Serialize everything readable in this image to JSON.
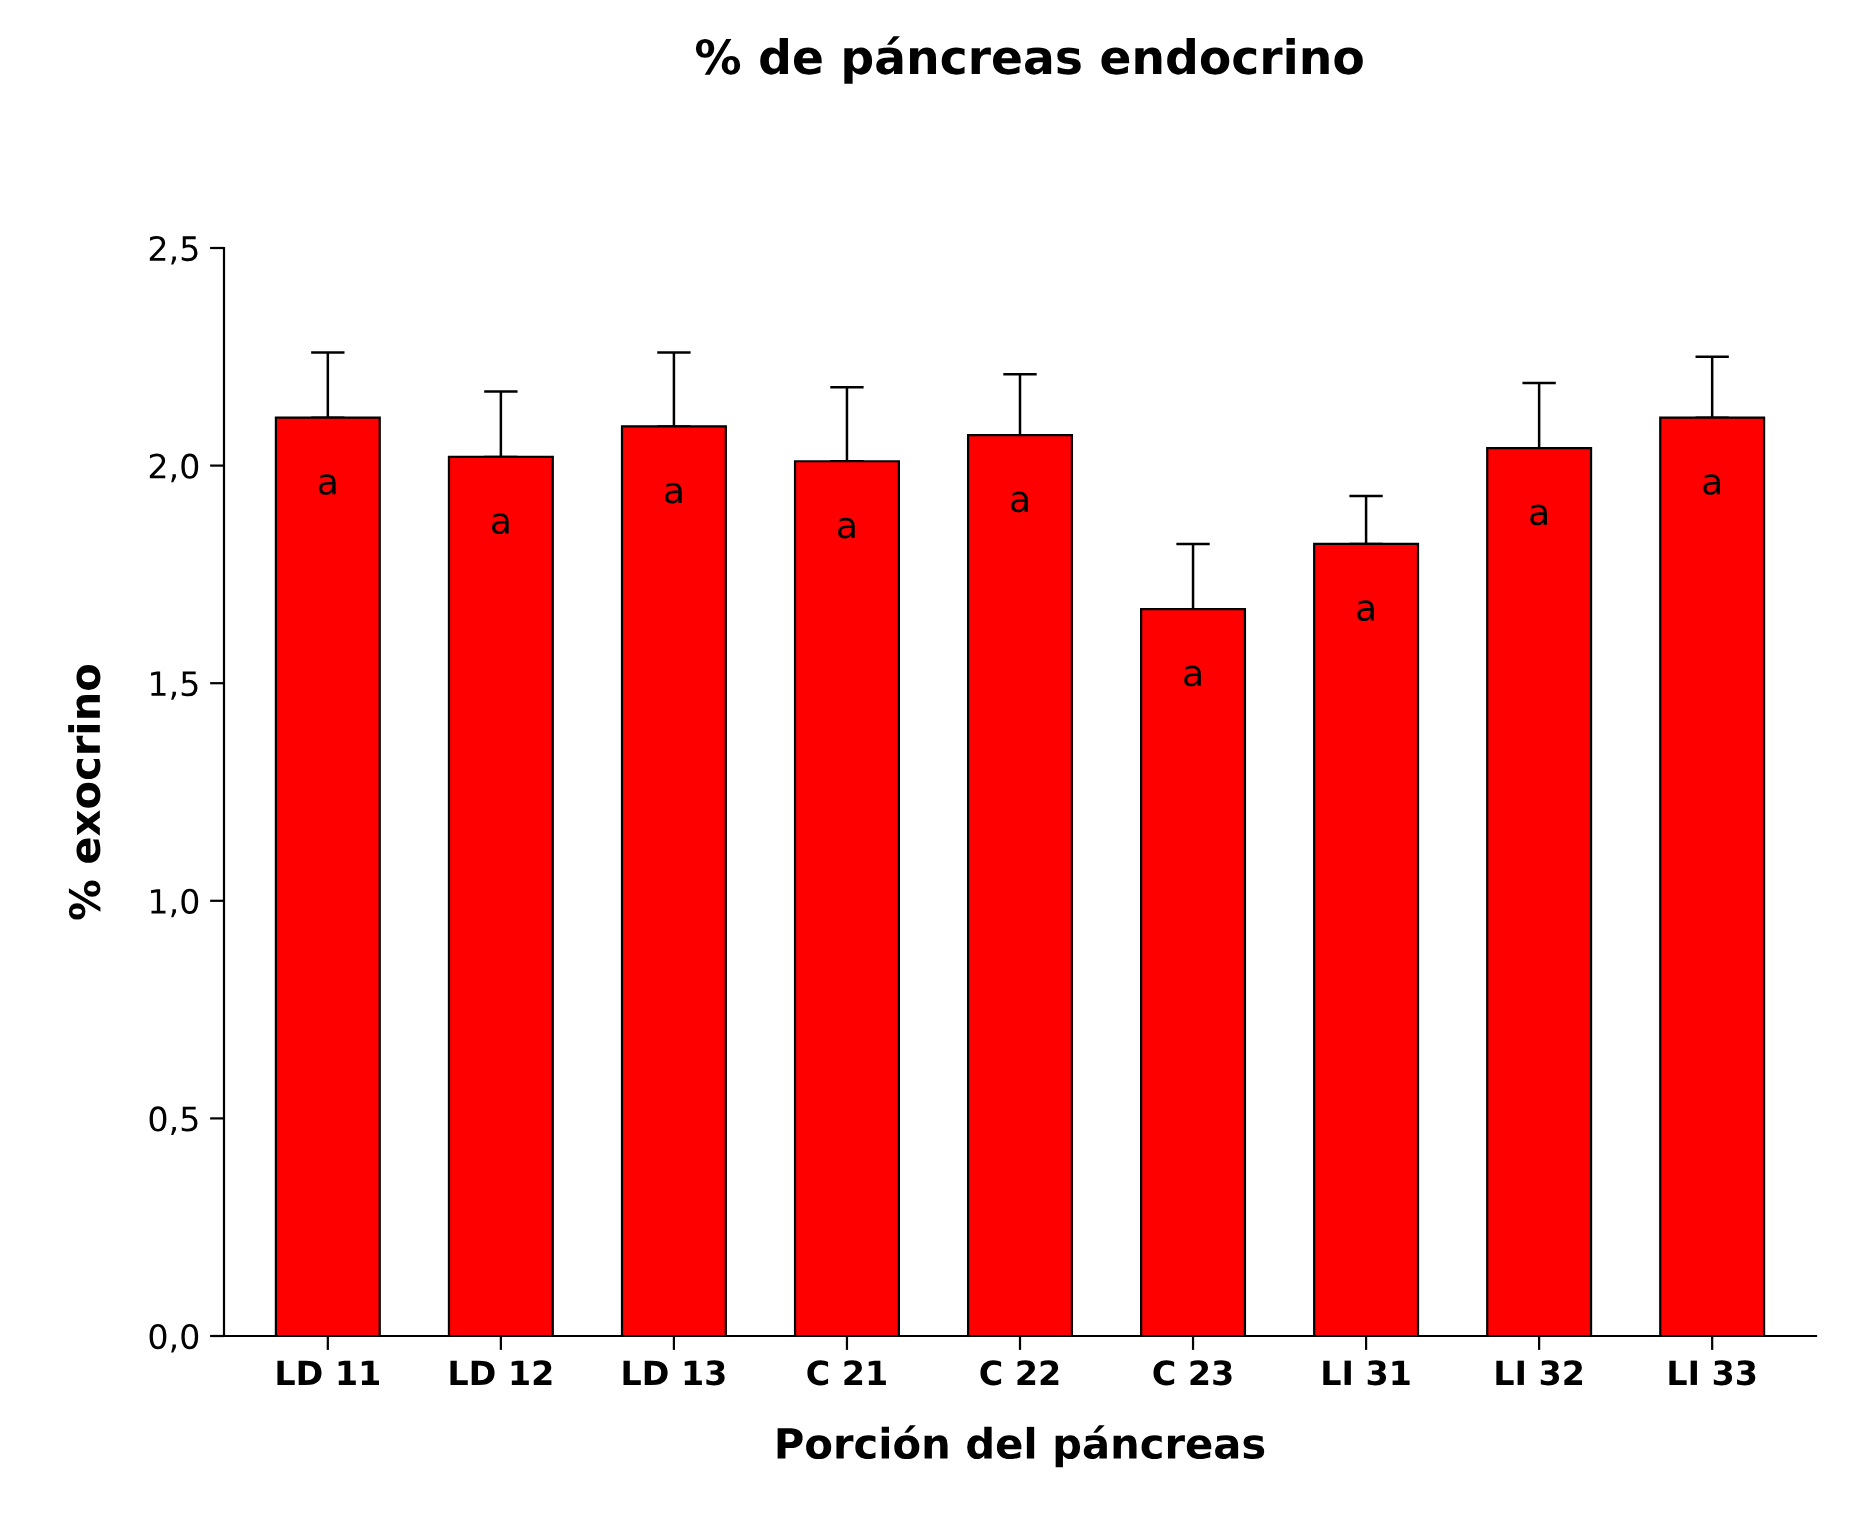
{
  "chart_data": {
    "type": "bar",
    "title": "% de páncreas endocrino",
    "xlabel": "Porción del páncreas",
    "ylabel": "% exocrino",
    "categories": [
      "LD 11",
      "LD 12",
      "LD 13",
      "C 21",
      "C 22",
      "C 23",
      "LI 31",
      "LI 32",
      "LI 33"
    ],
    "values": [
      2.11,
      2.02,
      2.09,
      2.01,
      2.07,
      1.67,
      1.82,
      2.04,
      2.11
    ],
    "errors": [
      [
        2.11,
        2.26
      ],
      [
        2.02,
        2.17
      ],
      [
        2.09,
        2.26
      ],
      [
        2.01,
        2.18
      ],
      [
        2.07,
        2.21
      ],
      [
        1.67,
        1.82
      ],
      [
        1.82,
        1.93
      ],
      [
        2.04,
        2.19
      ],
      [
        2.11,
        2.25
      ]
    ],
    "color": "#ff0000",
    "ylim": [
      0,
      2.5
    ],
    "yticks": [
      {
        "value": 0,
        "label": "0,0"
      },
      {
        "value": 0.5,
        "label": "0,5"
      },
      {
        "value": 1,
        "label": "1,0"
      },
      {
        "value": 1.5,
        "label": "1,5"
      },
      {
        "value": 2,
        "label": "2,0"
      },
      {
        "value": 2.5,
        "label": "2,5"
      }
    ],
    "annotations": [
      "a",
      "a",
      "a",
      "a",
      "a",
      "a",
      "a",
      "a",
      "a"
    ],
    "grid": false,
    "legend": false
  }
}
